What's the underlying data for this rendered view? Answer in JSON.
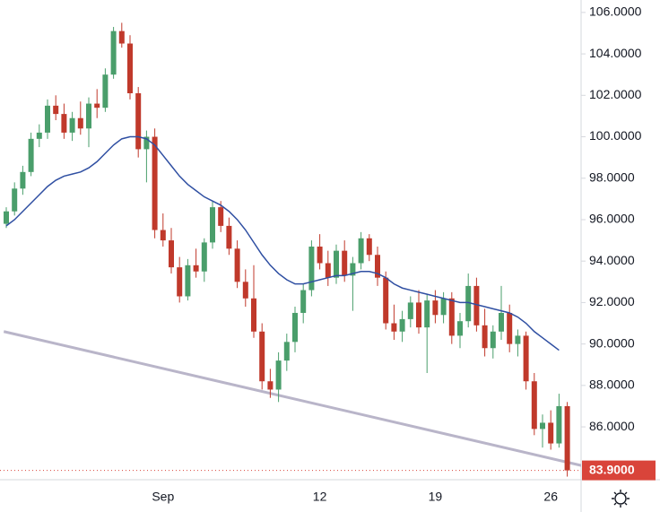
{
  "chart_data": {
    "type": "candlestick",
    "categories": [
      null,
      null,
      null,
      null,
      null,
      null,
      null,
      null,
      null,
      null,
      null,
      null,
      null,
      null,
      null,
      null,
      null,
      null,
      null,
      "Sep",
      null,
      null,
      null,
      null,
      null,
      null,
      null,
      null,
      null,
      null,
      null,
      null,
      null,
      null,
      null,
      null,
      null,
      null,
      "12",
      null,
      null,
      null,
      null,
      null,
      null,
      null,
      null,
      null,
      null,
      null,
      null,
      null,
      "19",
      null,
      null,
      null,
      null,
      null,
      null,
      null,
      null,
      null,
      null,
      null,
      null,
      null,
      "26",
      null,
      null
    ],
    "ohlc": [
      [
        95.8,
        96.6,
        95.6,
        96.4
      ],
      [
        96.4,
        97.8,
        96.2,
        97.5
      ],
      [
        97.5,
        98.6,
        97.2,
        98.3
      ],
      [
        98.3,
        100.2,
        98.1,
        99.9
      ],
      [
        99.9,
        100.6,
        99.5,
        100.2
      ],
      [
        100.2,
        101.8,
        99.9,
        101.5
      ],
      [
        101.5,
        102.0,
        100.8,
        101.1
      ],
      [
        101.1,
        101.6,
        99.9,
        100.2
      ],
      [
        100.2,
        101.2,
        99.8,
        100.9
      ],
      [
        100.9,
        101.7,
        100.1,
        100.4
      ],
      [
        100.4,
        101.9,
        99.5,
        101.6
      ],
      [
        101.6,
        102.3,
        100.9,
        101.4
      ],
      [
        101.4,
        103.3,
        101.2,
        103.0
      ],
      [
        103.0,
        105.3,
        102.8,
        105.1
      ],
      [
        105.1,
        105.5,
        104.3,
        104.5
      ],
      [
        104.5,
        104.9,
        101.8,
        102.1
      ],
      [
        102.1,
        102.4,
        99.0,
        99.4
      ],
      [
        99.4,
        100.3,
        97.8,
        100.0
      ],
      [
        100.0,
        100.4,
        95.1,
        95.5
      ],
      [
        95.5,
        96.3,
        94.7,
        95.0
      ],
      [
        95.0,
        95.6,
        93.4,
        93.7
      ],
      [
        93.7,
        94.2,
        92.0,
        92.3
      ],
      [
        92.3,
        94.1,
        92.1,
        93.8
      ],
      [
        93.8,
        94.6,
        93.2,
        93.5
      ],
      [
        93.5,
        95.1,
        93.0,
        94.9
      ],
      [
        94.9,
        96.9,
        94.6,
        96.6
      ],
      [
        96.6,
        96.9,
        95.4,
        95.7
      ],
      [
        95.7,
        96.1,
        94.3,
        94.6
      ],
      [
        94.6,
        95.0,
        92.7,
        93.0
      ],
      [
        93.0,
        93.6,
        91.8,
        92.2
      ],
      [
        92.2,
        93.8,
        90.3,
        90.6
      ],
      [
        90.6,
        91.0,
        87.8,
        88.2
      ],
      [
        88.2,
        88.8,
        87.4,
        87.8
      ],
      [
        87.8,
        89.6,
        87.2,
        89.2
      ],
      [
        89.2,
        90.5,
        88.7,
        90.1
      ],
      [
        90.1,
        91.8,
        89.6,
        91.5
      ],
      [
        91.5,
        92.9,
        91.0,
        92.6
      ],
      [
        92.6,
        95.0,
        92.3,
        94.7
      ],
      [
        94.7,
        95.3,
        93.6,
        93.9
      ],
      [
        93.9,
        94.5,
        92.8,
        93.2
      ],
      [
        93.2,
        94.8,
        92.9,
        94.5
      ],
      [
        94.5,
        95.0,
        93.0,
        93.3
      ],
      [
        93.3,
        94.2,
        91.6,
        93.9
      ],
      [
        93.9,
        95.4,
        93.6,
        95.1
      ],
      [
        95.1,
        95.3,
        94.0,
        94.3
      ],
      [
        94.3,
        94.7,
        92.8,
        93.2
      ],
      [
        93.2,
        93.5,
        90.7,
        91.0
      ],
      [
        91.0,
        91.9,
        90.2,
        90.6
      ],
      [
        90.6,
        91.6,
        90.1,
        91.2
      ],
      [
        91.2,
        92.3,
        90.8,
        92.0
      ],
      [
        92.0,
        92.6,
        90.5,
        90.8
      ],
      [
        90.8,
        92.4,
        88.6,
        92.1
      ],
      [
        92.1,
        92.6,
        91.0,
        91.4
      ],
      [
        91.4,
        92.5,
        91.0,
        92.2
      ],
      [
        92.2,
        92.5,
        90.0,
        90.4
      ],
      [
        90.4,
        91.5,
        89.8,
        91.1
      ],
      [
        91.1,
        93.4,
        90.8,
        92.8
      ],
      [
        92.8,
        93.2,
        90.6,
        90.9
      ],
      [
        90.9,
        91.7,
        89.4,
        89.8
      ],
      [
        89.8,
        90.9,
        89.3,
        90.6
      ],
      [
        90.6,
        92.8,
        90.2,
        91.5
      ],
      [
        91.5,
        91.9,
        89.6,
        90.0
      ],
      [
        90.0,
        90.7,
        89.4,
        90.4
      ],
      [
        90.4,
        90.6,
        87.8,
        88.2
      ],
      [
        88.2,
        88.6,
        85.6,
        85.9
      ],
      [
        85.9,
        86.6,
        85.0,
        86.2
      ],
      [
        86.2,
        86.8,
        84.9,
        85.2
      ],
      [
        85.2,
        87.6,
        85.0,
        87.0
      ],
      [
        87.0,
        87.2,
        83.6,
        83.9
      ]
    ],
    "up_color": "#4a9e6b",
    "down_color": "#c0392b",
    "moving_average": {
      "color": "#2f4fa2",
      "values": [
        95.7,
        96.0,
        96.4,
        96.8,
        97.2,
        97.6,
        97.9,
        98.1,
        98.2,
        98.3,
        98.5,
        98.8,
        99.2,
        99.6,
        99.9,
        100.0,
        100.0,
        99.9,
        99.6,
        99.1,
        98.6,
        98.1,
        97.7,
        97.4,
        97.1,
        96.9,
        96.7,
        96.4,
        96.0,
        95.5,
        94.9,
        94.3,
        93.8,
        93.4,
        93.1,
        92.9,
        92.9,
        93.0,
        93.1,
        93.2,
        93.3,
        93.3,
        93.4,
        93.5,
        93.5,
        93.4,
        93.2,
        92.9,
        92.7,
        92.6,
        92.5,
        92.4,
        92.3,
        92.2,
        92.1,
        92.0,
        92.0,
        91.9,
        91.8,
        91.7,
        91.6,
        91.5,
        91.3,
        91.0,
        90.6,
        90.3,
        90.0,
        89.7,
        null
      ]
    },
    "trendline": {
      "color": "#b9b5c9",
      "x": [
        -0.3,
        70.1
      ],
      "values": [
        90.6,
        84.1
      ]
    },
    "last_price": {
      "value": 83.9,
      "label": "83.9000",
      "color": "#d9443a"
    },
    "ylim": [
      83.45,
      106.6
    ],
    "yticks": [
      {
        "value": 86,
        "label": "86.0000"
      },
      {
        "value": 88,
        "label": "88.0000"
      },
      {
        "value": 90,
        "label": "90.0000"
      },
      {
        "value": 92,
        "label": "92.0000"
      },
      {
        "value": 94,
        "label": "94.0000"
      },
      {
        "value": 96,
        "label": "96.0000"
      },
      {
        "value": 98,
        "label": "98.0000"
      },
      {
        "value": 100,
        "label": "100.0000"
      },
      {
        "value": 102,
        "label": "102.0000"
      },
      {
        "value": 104,
        "label": "104.0000"
      },
      {
        "value": 106,
        "label": "106.0000"
      }
    ]
  }
}
